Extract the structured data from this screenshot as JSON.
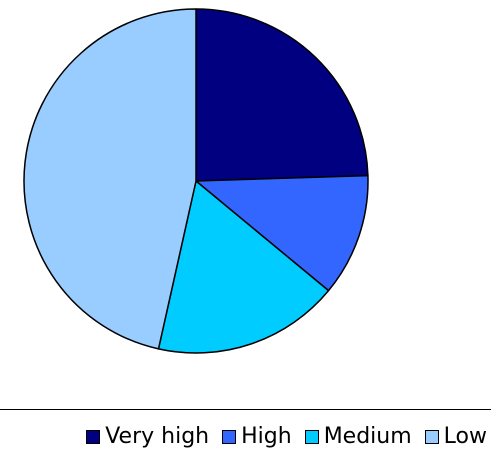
{
  "chart_data": {
    "type": "pie",
    "slices": [
      {
        "label": "Very high",
        "value": 24.5,
        "color": "#000080"
      },
      {
        "label": "High",
        "value": 11.5,
        "color": "#3366ff"
      },
      {
        "label": "Medium",
        "value": 17.5,
        "color": "#00ccff"
      },
      {
        "label": "Low",
        "value": 46.5,
        "color": "#99ccff"
      }
    ],
    "start": "12 o'clock",
    "direction": "clockwise",
    "legend_position": "bottom",
    "title": "",
    "xlabel": "",
    "ylabel": ""
  },
  "legend": {
    "items": [
      {
        "label": "Very high",
        "color": "#000080"
      },
      {
        "label": "High",
        "color": "#3366ff"
      },
      {
        "label": "Medium",
        "color": "#00ccff"
      },
      {
        "label": "Low",
        "color": "#99ccff"
      }
    ]
  }
}
